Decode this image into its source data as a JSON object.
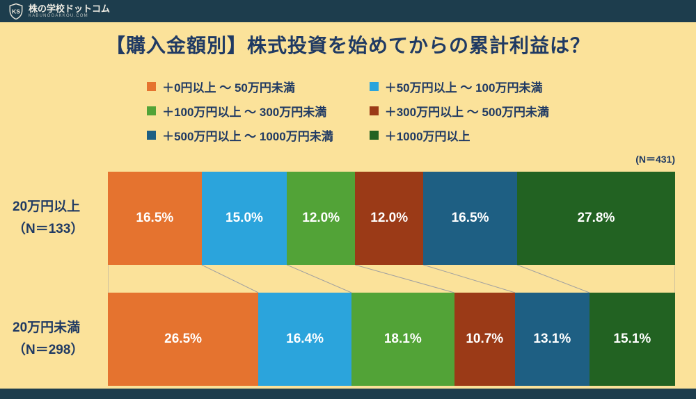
{
  "header": {
    "logo_monogram": "KS",
    "site_name": "株の学校ドットコム",
    "site_domain": "KABUNOGAKKOU.COM"
  },
  "title": "【購入金額別】株式投資を始めてからの累計利益は？",
  "sample_note": "(N＝431)",
  "colors": {
    "background": "#FBE29A",
    "frame_bar": "#1D3D4D",
    "heading_text": "#203A63",
    "connector": "#A0A0A0",
    "value_label": "#FFFFFF"
  },
  "chart_data": {
    "type": "bar",
    "variant": "horizontal-stacked-100-percent",
    "title": "【購入金額別】株式投資を始めてからの累計利益は？",
    "unit": "%",
    "n_total": 431,
    "legend_position": "top",
    "value_labels": "inside-white-bold",
    "categories": [
      {
        "label": "20万円以上",
        "sublabel": "（N＝133）",
        "n": 133
      },
      {
        "label": "20万円未満",
        "sublabel": "（N＝298）",
        "n": 298
      }
    ],
    "series": [
      {
        "name": "＋0円以上 ～ 50万円未満",
        "color": "#E5732F",
        "values": [
          16.5,
          26.5
        ]
      },
      {
        "name": "＋50万円以上 ～ 100万円未満",
        "color": "#2BA4DC",
        "values": [
          15.0,
          16.4
        ]
      },
      {
        "name": "＋100万円以上 ～ 300万円未満",
        "color": "#52A337",
        "values": [
          12.0,
          18.1
        ]
      },
      {
        "name": "＋300万円以上 ～ 500万円未満",
        "color": "#9B3A17",
        "values": [
          12.0,
          10.7
        ]
      },
      {
        "name": "＋500万円以上 ～ 1000万円未満",
        "color": "#1E5F83",
        "values": [
          16.5,
          13.1
        ]
      },
      {
        "name": "＋1000万円以上",
        "color": "#226222",
        "values": [
          27.8,
          15.1
        ]
      }
    ]
  }
}
